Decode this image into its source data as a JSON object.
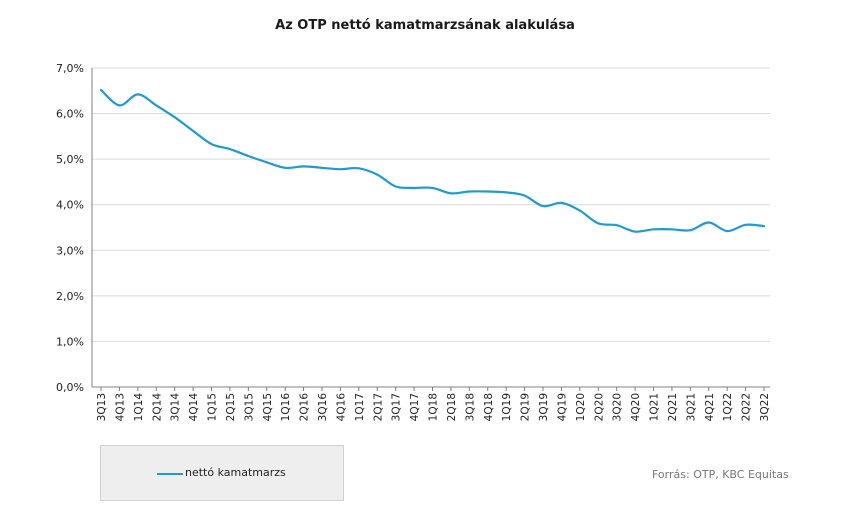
{
  "chart_data": {
    "type": "line",
    "title": "Az OTP nettó kamatmarzsának alakulása",
    "xlabel": "",
    "ylabel": "",
    "ylim": [
      0,
      7
    ],
    "y_ticks": [
      "0,0%",
      "1,0%",
      "2,0%",
      "3,0%",
      "4,0%",
      "5,0%",
      "6,0%",
      "7,0%"
    ],
    "grid": "horizontal",
    "legend_position": "bottom-left",
    "categories": [
      "3Q13",
      "4Q13",
      "1Q14",
      "2Q14",
      "3Q14",
      "4Q14",
      "1Q15",
      "2Q15",
      "3Q15",
      "4Q15",
      "1Q16",
      "2Q16",
      "3Q16",
      "4Q16",
      "1Q17",
      "2Q17",
      "3Q17",
      "4Q17",
      "1Q18",
      "2Q18",
      "3Q18",
      "4Q18",
      "1Q19",
      "2Q19",
      "3Q19",
      "4Q19",
      "1Q20",
      "2Q20",
      "3Q20",
      "4Q20",
      "1Q21",
      "2Q21",
      "3Q21",
      "4Q21",
      "1Q22",
      "2Q22",
      "3Q22"
    ],
    "series": [
      {
        "name": "nettó kamatmarzs",
        "color": "#1f9bcf",
        "values": [
          6.52,
          6.18,
          6.42,
          6.18,
          5.92,
          5.62,
          5.33,
          5.22,
          5.07,
          4.93,
          4.81,
          4.84,
          4.81,
          4.78,
          4.8,
          4.66,
          4.4,
          4.37,
          4.37,
          4.25,
          4.29,
          4.29,
          4.27,
          4.2,
          3.97,
          4.04,
          3.87,
          3.59,
          3.55,
          3.41,
          3.46,
          3.46,
          3.44,
          3.61,
          3.42,
          3.56,
          3.53
        ]
      }
    ]
  },
  "legend": {
    "label": "nettó kamatmarzs"
  },
  "source": "Forrás: OTP, KBC Equitas"
}
